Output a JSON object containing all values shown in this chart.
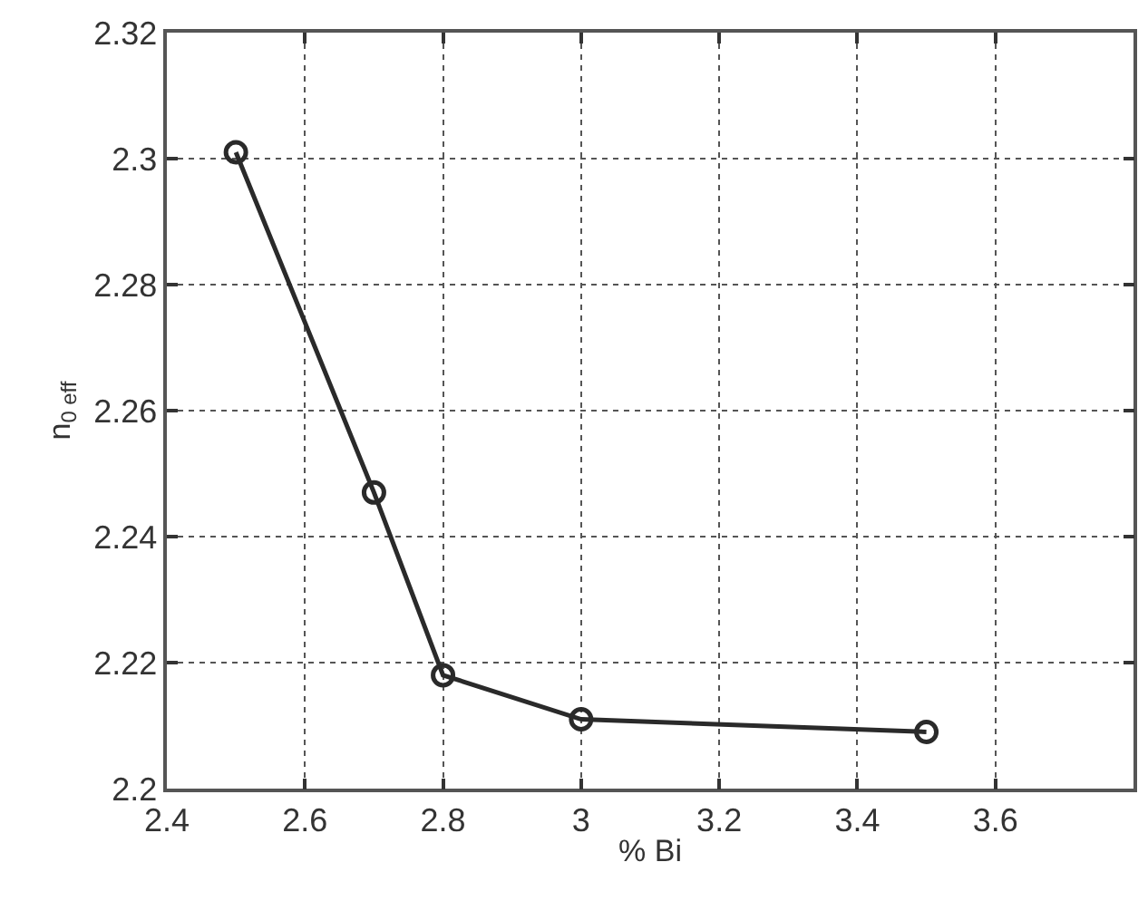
{
  "chart_data": {
    "type": "line",
    "xlabel": "% Bi",
    "ylabel": "n$_{0 eff}$",
    "x": [
      2.5,
      2.7,
      2.8,
      3.0,
      3.5
    ],
    "series": [
      {
        "color": "#2a2a2a",
        "values": [
          2.301,
          2.247,
          2.218,
          2.211,
          2.209
        ]
      }
    ],
    "xlim": [
      2.4,
      3.8
    ],
    "xticks": [
      2.4,
      2.6,
      2.8,
      3,
      3.2,
      3.4,
      3.6
    ],
    "ylim": [
      2.2,
      2.32
    ],
    "yticks": [
      2.2,
      2.22,
      2.24,
      2.26,
      2.28,
      2.3,
      2.32
    ],
    "grid": true,
    "marker": "circle",
    "line_style": "solid"
  }
}
